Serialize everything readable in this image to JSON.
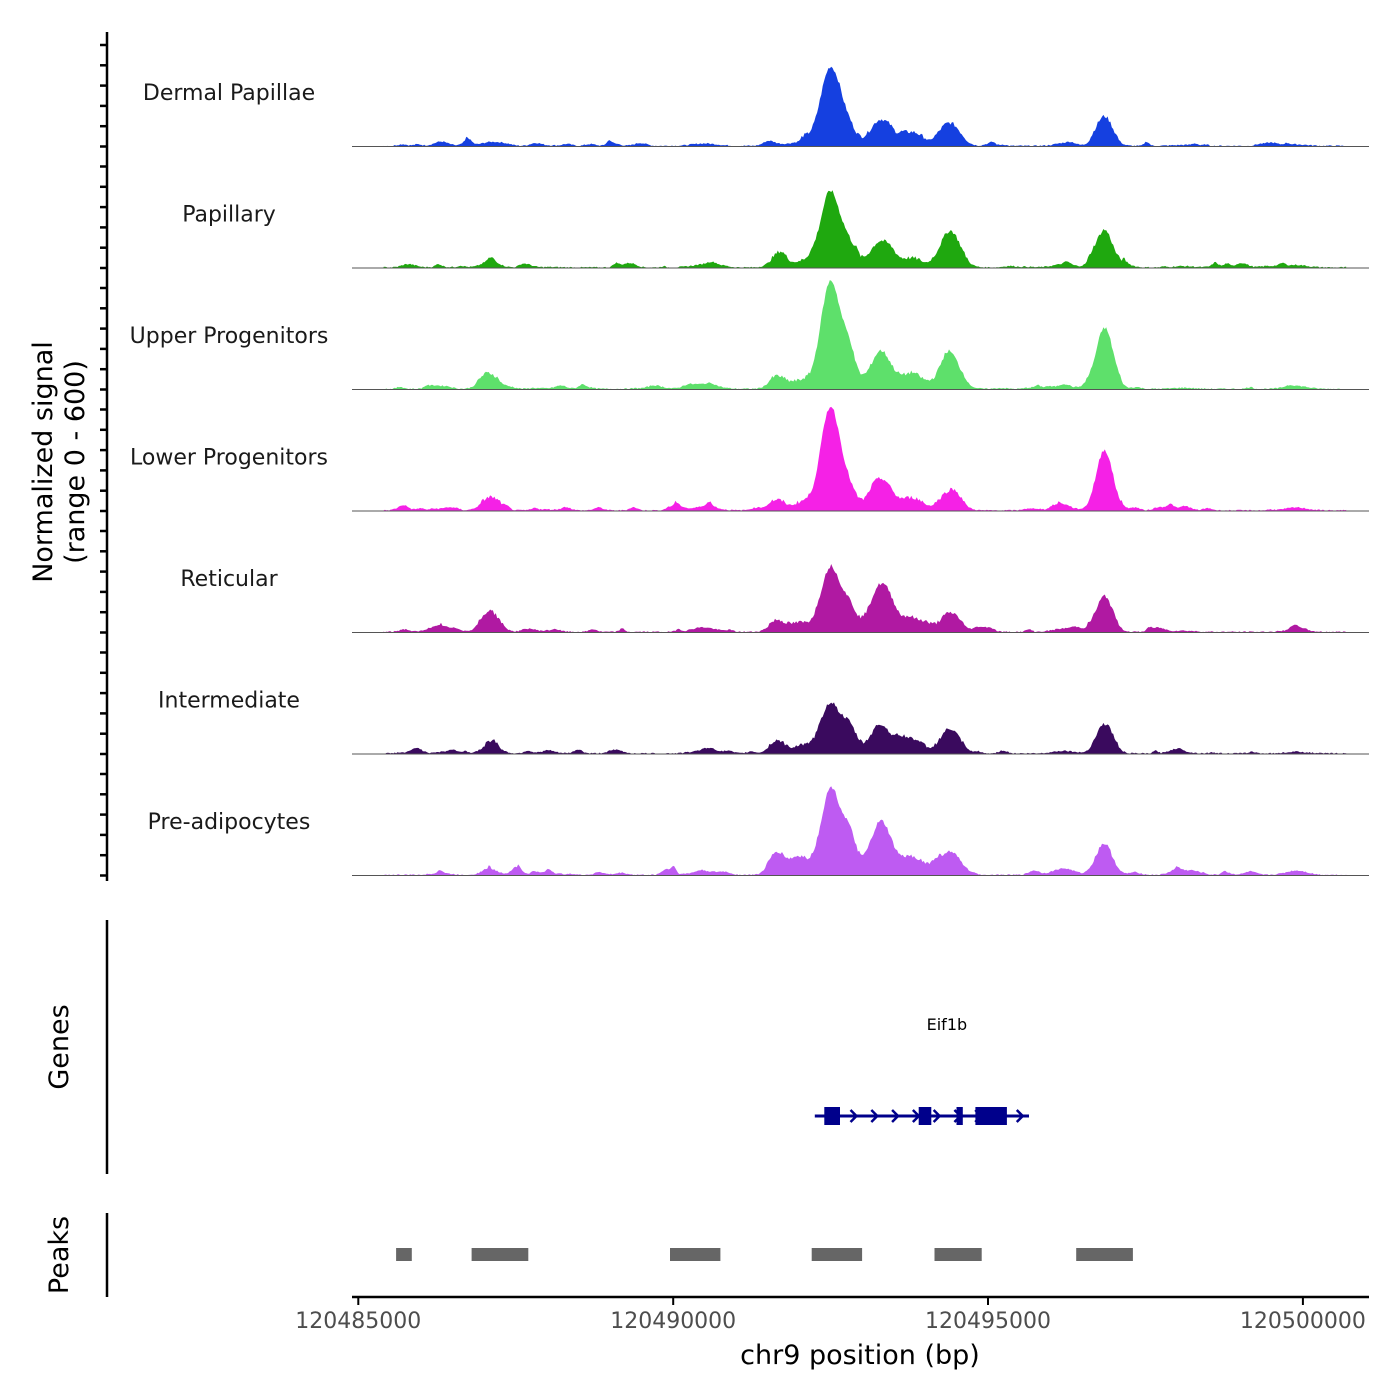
{
  "chart_data": {
    "type": "area",
    "chromosome": "chr9",
    "xlabel": "chr9 position (bp)",
    "ylabel_line1": "Normalized signal",
    "ylabel_line2": "(range 0 - 600)",
    "y_range": [
      0,
      600
    ],
    "x_range": [
      120484900,
      120501050
    ],
    "x_ticks": [
      {
        "value": 120485000,
        "label": "120485000"
      },
      {
        "value": 120490000,
        "label": "120490000"
      },
      {
        "value": 120495000,
        "label": "120495000"
      },
      {
        "value": 120500000,
        "label": "120500000"
      }
    ],
    "peaks_centers": [
      {
        "pos": 120485650,
        "height": 20,
        "width": 200
      },
      {
        "pos": 120486300,
        "height": 15,
        "width": 250
      },
      {
        "pos": 120487100,
        "height": 40,
        "width": 250
      },
      {
        "pos": 120488000,
        "height": 12,
        "width": 300
      },
      {
        "pos": 120490500,
        "height": 25,
        "width": 350
      },
      {
        "pos": 120491650,
        "height": 60,
        "width": 220
      },
      {
        "pos": 120492000,
        "height": 40,
        "width": 250
      },
      {
        "pos": 120492500,
        "height": 300,
        "width": 280
      },
      {
        "pos": 120492800,
        "height": 120,
        "width": 200
      },
      {
        "pos": 120493300,
        "height": 120,
        "width": 300
      },
      {
        "pos": 120493800,
        "height": 70,
        "width": 300
      },
      {
        "pos": 120494400,
        "height": 110,
        "width": 280
      },
      {
        "pos": 120496200,
        "height": 20,
        "width": 300
      },
      {
        "pos": 120496850,
        "height": 160,
        "width": 230
      },
      {
        "pos": 120498100,
        "height": 10,
        "width": 300
      },
      {
        "pos": 120499900,
        "height": 15,
        "width": 300
      }
    ],
    "series": [
      {
        "name": "Dermal Papillae",
        "color": "#1540e0",
        "peaks": [
          0,
          0.2,
          0.3,
          0.15,
          0.3,
          0.1,
          0.2,
          0.8,
          0.35,
          0.65,
          0.55,
          0.6,
          0.2,
          0.55,
          0.3,
          0.3
        ]
      },
      {
        "name": "Papillary",
        "color": "#1fa80f",
        "peaks": [
          0,
          0.15,
          0.35,
          0.1,
          0.35,
          0.45,
          0.4,
          0.75,
          0.45,
          0.65,
          0.35,
          1.0,
          0.5,
          0.7,
          0.4,
          0.5
        ]
      },
      {
        "name": "Upper Progenitors",
        "color": "#5ee06b",
        "peaks": [
          0,
          0.2,
          1.0,
          0.15,
          0.6,
          0.6,
          0.5,
          1.1,
          0.7,
          0.9,
          0.6,
          0.9,
          0.45,
          1.15,
          0.35,
          0.6
        ]
      },
      {
        "name": "Lower Progenitors",
        "color": "#f521e6",
        "peaks": [
          0,
          0.2,
          0.95,
          0.25,
          0.45,
          0.45,
          0.45,
          1.05,
          0.4,
          0.75,
          0.5,
          0.5,
          0.5,
          1.15,
          0.4,
          0.6
        ]
      },
      {
        "name": "Reticular",
        "color": "#b019a2",
        "peaks": [
          0,
          0.3,
          1.45,
          0.3,
          0.5,
          0.55,
          0.6,
          0.65,
          0.55,
          1.2,
          0.5,
          0.5,
          0.5,
          0.65,
          0.4,
          0.5
        ]
      },
      {
        "name": "Intermediate",
        "color": "#3a0a5e",
        "peaks": [
          0,
          0.3,
          0.55,
          0.3,
          0.35,
          0.55,
          0.45,
          0.5,
          0.55,
          0.65,
          0.55,
          0.6,
          0.4,
          0.55,
          0.3,
          0.35
        ]
      },
      {
        "name": "Pre-adipocytes",
        "color": "#be5bf2",
        "peaks": [
          0,
          0.4,
          0.3,
          0.55,
          0.45,
          1.1,
          1.3,
          0.85,
          0.9,
          1.35,
          0.75,
          0.6,
          1.0,
          0.55,
          0.9,
          0.9
        ]
      }
    ],
    "genes": [
      {
        "name": "Eif1b",
        "color": "#00008b",
        "strand": "+",
        "start": 120492250,
        "end": 120495650,
        "exons": [
          [
            120492400,
            120492650
          ],
          [
            120493900,
            120494100
          ],
          [
            120494500,
            120494600
          ],
          [
            120494800,
            120495300
          ]
        ]
      }
    ],
    "genes_label": "Genes",
    "peaks_label": "Peaks",
    "peaks_color": "#666666",
    "peak_regions": [
      [
        120485600,
        120485850
      ],
      [
        120486800,
        120487700
      ],
      [
        120489950,
        120490750
      ],
      [
        120492200,
        120493000
      ],
      [
        120494150,
        120494900
      ],
      [
        120496400,
        120497300
      ]
    ]
  }
}
